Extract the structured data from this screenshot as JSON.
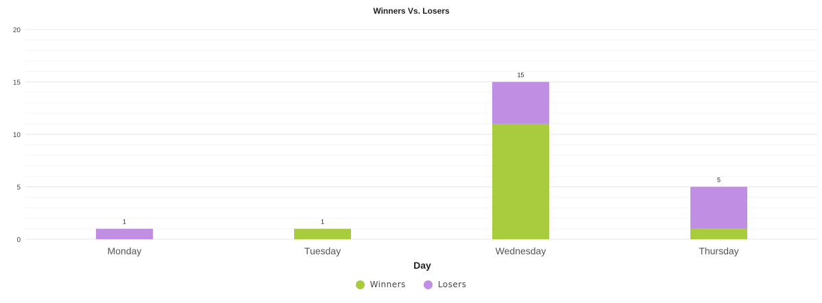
{
  "chart_data": {
    "type": "bar",
    "stacked": true,
    "title": "Winners Vs. Losers",
    "xlabel": "Day",
    "ylabel": "",
    "categories": [
      "Monday",
      "Tuesday",
      "Wednesday",
      "Thursday"
    ],
    "series": [
      {
        "name": "Winners",
        "values": [
          0,
          1,
          11,
          1
        ],
        "color": "#a8cc3d"
      },
      {
        "name": "Losers",
        "values": [
          1,
          0,
          4,
          4
        ],
        "color": "#c08fe4"
      }
    ],
    "totals": [
      1,
      1,
      15,
      5
    ],
    "ylim": [
      0,
      20
    ],
    "yticks": [
      0,
      5,
      10,
      15,
      20
    ],
    "grid": true,
    "legend_position": "bottom-center"
  },
  "legend": {
    "winners_label": "Winners",
    "losers_label": "Losers",
    "winners_color": "#a8cc3d",
    "losers_color": "#c08fe4"
  }
}
